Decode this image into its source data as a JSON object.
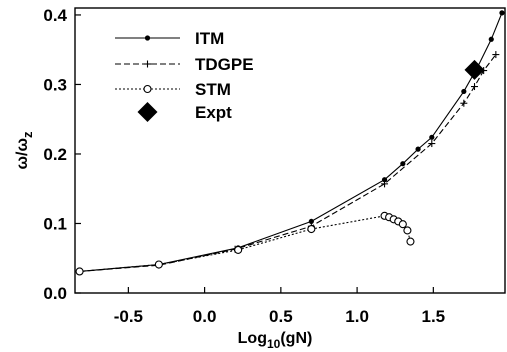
{
  "chart_data": {
    "type": "line",
    "xlabel": {
      "main": "Log",
      "sub": "10",
      "tail": "(gN)"
    },
    "ylabel": {
      "main": "ω/ω",
      "sub": "z"
    },
    "xlim": [
      -0.85,
      1.97
    ],
    "ylim": [
      0.0,
      0.41
    ],
    "xticks": [
      -0.5,
      0.0,
      0.5,
      1.0,
      1.5
    ],
    "xtick_labels": [
      "-0.5",
      "0.0",
      "0.5",
      "1.0",
      "1.5"
    ],
    "yticks": [
      0.0,
      0.1,
      0.2,
      0.3,
      0.4
    ],
    "ytick_labels": [
      "0.0",
      "0.1",
      "0.2",
      "0.3",
      "0.4"
    ],
    "legend_position": "upper-left",
    "series": [
      {
        "name": "ITM",
        "style": "solid-filled-dot",
        "color": "#000000",
        "x": [
          -0.82,
          -0.3,
          0.22,
          0.7,
          1.18,
          1.3,
          1.4,
          1.49,
          1.7,
          1.79,
          1.88,
          1.95
        ],
        "y": [
          0.031,
          0.041,
          0.065,
          0.103,
          0.163,
          0.186,
          0.207,
          0.224,
          0.29,
          0.325,
          0.365,
          0.403
        ]
      },
      {
        "name": "TDGPE",
        "style": "dashed-plus",
        "color": "#000000",
        "x": [
          -0.82,
          -0.3,
          0.2,
          0.7,
          1.18,
          1.49,
          1.7,
          1.77,
          1.83,
          1.91
        ],
        "y": [
          0.031,
          0.04,
          0.063,
          0.096,
          0.157,
          0.215,
          0.273,
          0.297,
          0.32,
          0.343
        ]
      },
      {
        "name": "STM",
        "style": "dotted-open-circle",
        "color": "#000000",
        "x": [
          -0.82,
          -0.3,
          0.22,
          0.7,
          1.18,
          1.21,
          1.24,
          1.27,
          1.3,
          1.33,
          1.35
        ],
        "y": [
          0.031,
          0.041,
          0.062,
          0.092,
          0.111,
          0.109,
          0.106,
          0.103,
          0.099,
          0.09,
          0.074
        ]
      },
      {
        "name": "Expt",
        "style": "diamond",
        "color": "#000000",
        "x": [
          1.77
        ],
        "y": [
          0.321
        ]
      }
    ]
  }
}
